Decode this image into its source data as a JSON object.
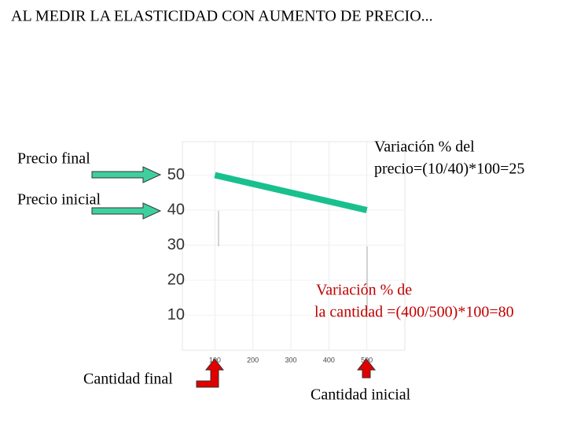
{
  "chart_data": {
    "type": "line",
    "title": "AL MEDIR LA ELASTICIDAD CON AUMENTO DE PRECIO...",
    "x": [
      100,
      500
    ],
    "series": [
      {
        "color": "#19c08e",
        "values": [
          50,
          40
        ]
      }
    ],
    "xlim": [
      0,
      600
    ],
    "xticks": [
      100,
      200,
      300,
      400,
      500
    ],
    "ylim": [
      0,
      60
    ],
    "yticks": [
      10,
      20,
      30,
      40,
      50
    ],
    "grid": true,
    "annotations": {
      "precio_final": "Precio final",
      "precio_inicial": "Precio inicial",
      "variacion_precio": [
        "Variación % del",
        "precio=(10/40)*100=25"
      ],
      "variacion_cantidad": [
        "Variación % de",
        "la cantidad =(400/500)*100=80"
      ],
      "cantidad_final": "Cantidad final",
      "cantidad_inicial": "Cantidad inicial"
    }
  }
}
